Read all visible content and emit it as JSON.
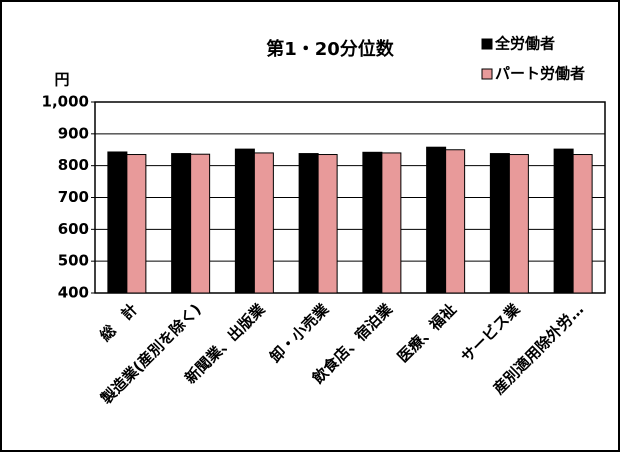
{
  "chart_data": {
    "type": "bar",
    "title": "第1・20分位数",
    "y_unit": "円",
    "categories": [
      "総　計",
      "製造業(産別を除く)",
      "新聞業、出版業",
      "卸・小売業",
      "飲食店、宿泊業",
      "医療、福祉",
      "サービス業",
      "産別適用除外労…"
    ],
    "series": [
      {
        "name": "全労働者",
        "color": "#000000",
        "values": [
          843,
          838,
          852,
          838,
          842,
          858,
          838,
          852
        ]
      },
      {
        "name": "パート労働者",
        "color": "#e89a9a",
        "values": [
          835,
          836,
          840,
          835,
          840,
          850,
          835,
          835
        ]
      }
    ],
    "ylim": [
      400,
      1000
    ],
    "yticks": [
      400,
      500,
      600,
      700,
      800,
      900,
      {
        "value": 1000,
        "label": "1,000"
      }
    ],
    "grid": true,
    "legend": "top-right"
  }
}
